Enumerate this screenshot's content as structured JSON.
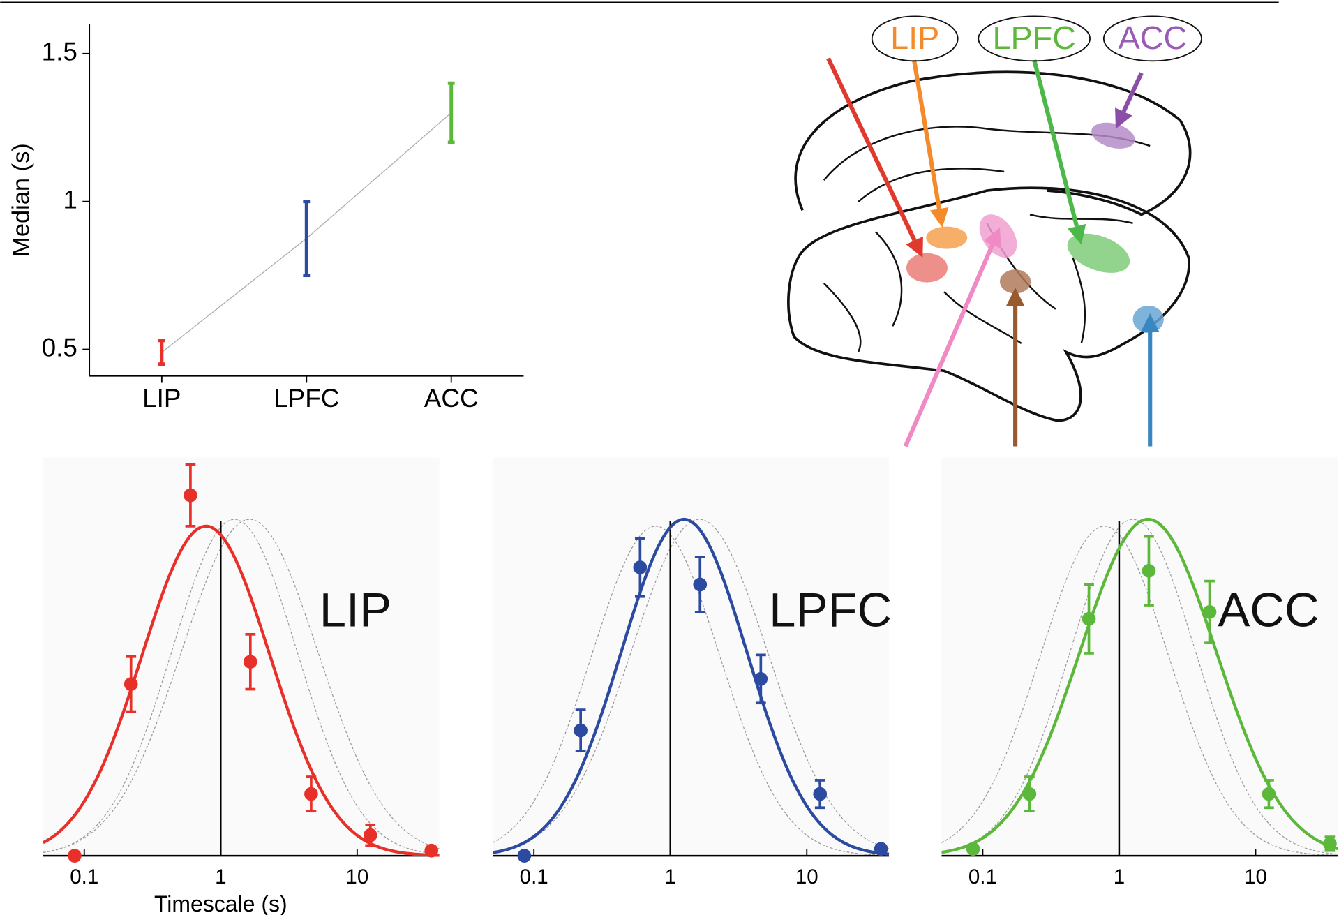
{
  "chart_data": [
    {
      "type": "errorbar",
      "ylabel": "Median (s)",
      "categories": [
        "LIP",
        "LPFC",
        "ACC"
      ],
      "values": [
        0.49,
        0.875,
        1.3
      ],
      "errors": [
        0.04,
        0.125,
        0.1
      ],
      "colors": [
        "#e8302a",
        "#2b4aa0",
        "#5cb83a"
      ],
      "ylim": [
        0.41,
        1.6
      ],
      "yticks": [
        0.5,
        1,
        1.5
      ]
    },
    {
      "type": "curve",
      "label": "LIP",
      "xlabel": "Timescale (s)",
      "color": "#e8302a",
      "x": [
        0.085,
        0.22,
        0.6,
        1.65,
        4.6,
        12.5,
        35
      ],
      "values": [
        0,
        0.5,
        1.05,
        0.565,
        0.18,
        0.06,
        0.015
      ],
      "errors": [
        0,
        0.08,
        0.09,
        0.08,
        0.05,
        0.03,
        0.01
      ],
      "fit": {
        "center": 0.78,
        "peak": 0.96,
        "sigma": 0.47
      },
      "xlim": [
        0.05,
        40
      ],
      "xticks": [
        0.1,
        1,
        10
      ],
      "ylim": [
        0,
        1.16
      ],
      "log_x": true,
      "vline": 1
    },
    {
      "type": "curve",
      "label": "LPFC",
      "color": "#2b4aa0",
      "x": [
        0.085,
        0.22,
        0.6,
        1.65,
        4.6,
        12.5,
        35
      ],
      "values": [
        0,
        0.365,
        0.84,
        0.79,
        0.515,
        0.18,
        0.02
      ],
      "errors": [
        0,
        0.06,
        0.085,
        0.08,
        0.07,
        0.04,
        0.01
      ],
      "fit": {
        "center": 1.26,
        "peak": 0.98,
        "sigma": 0.46
      },
      "xlim": [
        0.05,
        40
      ],
      "xticks": [
        0.1,
        1,
        10
      ],
      "ylim": [
        0,
        1.16
      ],
      "log_x": true,
      "vline": 1
    },
    {
      "type": "curve",
      "label": "ACC",
      "color": "#5cb83a",
      "x": [
        0.085,
        0.22,
        0.6,
        1.65,
        4.6,
        12.5,
        35
      ],
      "values": [
        0.02,
        0.18,
        0.69,
        0.83,
        0.71,
        0.18,
        0.035
      ],
      "errors": [
        0.005,
        0.05,
        0.1,
        0.1,
        0.09,
        0.04,
        0.02
      ],
      "fit": {
        "center": 1.63,
        "peak": 0.98,
        "sigma": 0.5
      },
      "xlim": [
        0.05,
        40
      ],
      "xticks": [
        0.1,
        1,
        10
      ],
      "ylim": [
        0,
        1.16
      ],
      "log_x": true,
      "vline": 1
    }
  ],
  "brain_labels": [
    "LIP",
    "LPFC",
    "ACC"
  ]
}
